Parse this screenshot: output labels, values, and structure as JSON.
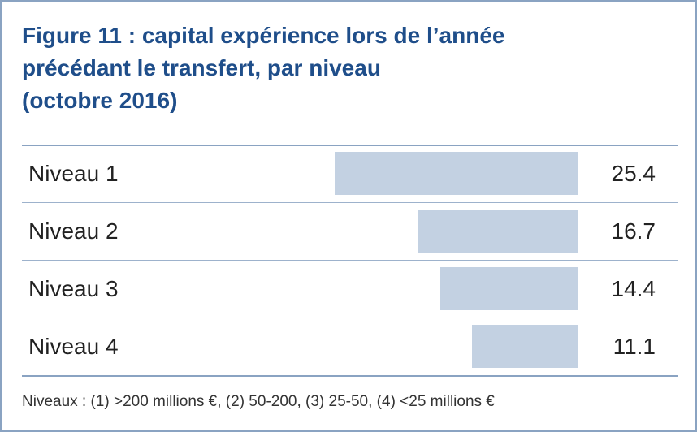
{
  "chart_data": {
    "type": "bar",
    "orientation": "horizontal",
    "title_lines": [
      "Figure 11 : capital expérience lors de l’année",
      "précédant le transfert, par niveau",
      "(octobre 2016)"
    ],
    "categories": [
      "Niveau 1",
      "Niveau 2",
      "Niveau 3",
      "Niveau 4"
    ],
    "values": [
      25.4,
      16.7,
      14.4,
      11.1
    ],
    "value_labels": [
      "25.4",
      "16.7",
      "14.4",
      "11.1"
    ],
    "xlim": [
      0,
      25.4
    ],
    "bar_direction": "right-aligned",
    "grid": false,
    "bar_color": "#c3d1e2",
    "title_color": "#1f4e8a",
    "footnote": "Niveaux : (1) >200 millions €, (2) 50-200, (3) 25-50, (4) <25 millions €"
  }
}
